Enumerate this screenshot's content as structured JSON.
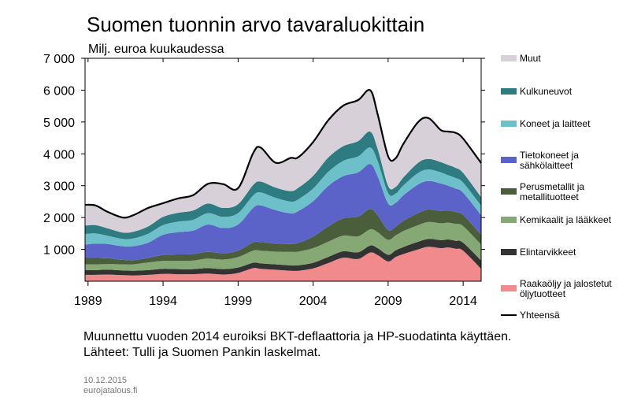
{
  "title": "Suomen tuonnin arvo tavaraluokittain",
  "footnote_line1": "Muunnettu vuoden 2014 euroiksi BKT-deflaattoria ja HP-suodatinta käyttäen.",
  "footnote_line2": "Lähteet: Tulli ja Suomen Pankin laskelmat.",
  "date": "10.12.2015",
  "source_site": "eurojatalous.fi",
  "chart_data": {
    "type": "area",
    "stacked": true,
    "ylabel": "Milj. euroa kuukaudessa",
    "ylim": [
      0,
      7000
    ],
    "xlim": [
      1988.8,
      2015.2
    ],
    "y_ticks": [
      {
        "v": 1000,
        "label": "1 000"
      },
      {
        "v": 2000,
        "label": "2 000"
      },
      {
        "v": 3000,
        "label": "3 000"
      },
      {
        "v": 4000,
        "label": "4 000"
      },
      {
        "v": 5000,
        "label": "5 000"
      },
      {
        "v": 6000,
        "label": "6 000"
      },
      {
        "v": 7000,
        "label": "7 000"
      }
    ],
    "x_ticks": [
      {
        "v": 1989,
        "label": "1989"
      },
      {
        "v": 1994,
        "label": "1994"
      },
      {
        "v": 1999,
        "label": "1999"
      },
      {
        "v": 2004,
        "label": "2004"
      },
      {
        "v": 2009,
        "label": "2009"
      },
      {
        "v": 2014,
        "label": "2014"
      }
    ],
    "x": [
      1988.8,
      1989.5,
      1990.3,
      1991.3,
      1992,
      1993,
      1994,
      1995,
      1996,
      1997,
      1998,
      1999,
      2000,
      2000.5,
      2001.5,
      2002.5,
      2003,
      2004,
      2005,
      2006,
      2007,
      2007.8,
      2008.3,
      2009,
      2009.5,
      2010,
      2011,
      2011.7,
      2012.5,
      2013,
      2013.5,
      2014,
      2015.2
    ],
    "series": [
      {
        "name": "Raakaöljy ja jalostetut öljytuotteet",
        "color": "#f08a8c",
        "values": [
          200,
          200,
          210,
          190,
          180,
          200,
          230,
          220,
          220,
          240,
          210,
          260,
          410,
          390,
          360,
          330,
          330,
          400,
          570,
          740,
          700,
          900,
          820,
          620,
          760,
          850,
          1000,
          1080,
          1040,
          1060,
          1020,
          960,
          390
        ]
      },
      {
        "name": "Elintarvikkeet",
        "color": "#333333",
        "values": [
          150,
          150,
          150,
          150,
          150,
          150,
          160,
          160,
          160,
          170,
          170,
          170,
          170,
          170,
          170,
          170,
          170,
          180,
          190,
          200,
          210,
          220,
          220,
          210,
          210,
          220,
          240,
          250,
          250,
          250,
          250,
          250,
          260
        ]
      },
      {
        "name": "Kemikaalit ja lääkkeet",
        "color": "#86a874",
        "values": [
          180,
          180,
          180,
          190,
          200,
          240,
          250,
          260,
          270,
          300,
          300,
          330,
          380,
          400,
          400,
          420,
          430,
          460,
          480,
          490,
          500,
          510,
          500,
          470,
          470,
          500,
          520,
          530,
          530,
          530,
          530,
          520,
          500
        ]
      },
      {
        "name": "Perusmetallit ja metallituotteet",
        "color": "#4b5e3b",
        "values": [
          200,
          200,
          180,
          140,
          130,
          140,
          180,
          200,
          200,
          210,
          200,
          200,
          260,
          270,
          250,
          250,
          270,
          360,
          480,
          540,
          620,
          640,
          530,
          300,
          270,
          320,
          380,
          390,
          390,
          380,
          370,
          350,
          300
        ]
      },
      {
        "name": "Tietokoneet ja sähkölaitteet",
        "color": "#5b63c8",
        "values": [
          420,
          450,
          450,
          430,
          440,
          480,
          640,
          700,
          740,
          860,
          790,
          820,
          1080,
          1150,
          1050,
          960,
          1000,
          1110,
          1270,
          1330,
          1390,
          1410,
          1230,
          840,
          750,
          800,
          900,
          900,
          860,
          780,
          740,
          700,
          620
        ]
      },
      {
        "name": "Koneet ja laitteet",
        "color": "#6dc0c9",
        "values": [
          330,
          320,
          260,
          230,
          240,
          280,
          300,
          330,
          340,
          360,
          350,
          360,
          390,
          410,
          390,
          370,
          370,
          400,
          440,
          480,
          500,
          520,
          480,
          330,
          290,
          310,
          360,
          360,
          350,
          330,
          330,
          320,
          300
        ]
      },
      {
        "name": "Kulkuneuvot",
        "color": "#2f7b82",
        "values": [
          270,
          260,
          230,
          200,
          210,
          230,
          260,
          280,
          290,
          300,
          280,
          280,
          330,
          340,
          320,
          330,
          360,
          400,
          450,
          460,
          480,
          500,
          380,
          220,
          210,
          250,
          320,
          330,
          320,
          320,
          320,
          300,
          270
        ]
      },
      {
        "name": "Muut",
        "color": "#d8d0d8",
        "values": [
          650,
          620,
          520,
          470,
          520,
          580,
          430,
          450,
          480,
          620,
          750,
          500,
          1000,
          1070,
          780,
          1040,
          960,
          1060,
          1170,
          1270,
          1290,
          1300,
          1090,
          930,
          900,
          1050,
          1280,
          1280,
          1010,
          1050,
          1100,
          1080,
          1070
        ]
      }
    ],
    "total": {
      "name": "Yhteensä",
      "color": "#000000"
    },
    "legend": [
      "Muut",
      "Kulkuneuvot",
      "Koneet ja laitteet",
      [
        "Tietokoneet ja",
        "sähkölaitteet"
      ],
      [
        "Perusmetallit ja",
        "metallituotteet"
      ],
      "Kemikaalit ja lääkkeet",
      "Elintarvikkeet",
      [
        "Raakaöljy ja jalostetut",
        "öljytuotteet"
      ],
      "Yhteensä"
    ]
  }
}
